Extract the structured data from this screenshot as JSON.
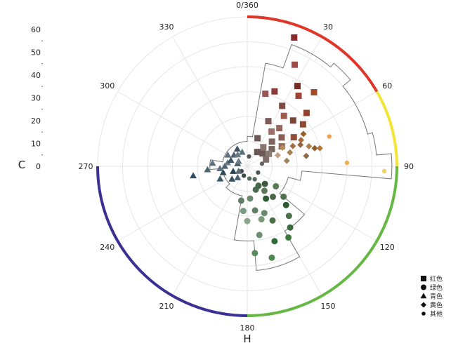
{
  "chart_data": {
    "type": "scatter",
    "coordinate_system": "polar",
    "xlabel": "H",
    "ylabel": "C",
    "angle_ticks": [
      "0/360",
      "30",
      "60",
      "90",
      "120",
      "150",
      "180",
      "210",
      "240",
      "270",
      "300",
      "330"
    ],
    "radial_ticks": [
      "0",
      "10",
      "20",
      "30",
      "40",
      "50",
      "60"
    ],
    "radial_range": [
      0,
      60
    ],
    "angle_range": [
      0,
      360
    ],
    "grid": true,
    "legend_position": "bottom-right",
    "hue_band": [
      {
        "from": 0,
        "to": 60,
        "color": "#e03528"
      },
      {
        "from": 60,
        "to": 90,
        "color": "#f2e537"
      },
      {
        "from": 90,
        "to": 180,
        "color": "#66b845"
      },
      {
        "from": 180,
        "to": 270,
        "color": "#3a3192"
      }
    ],
    "series": [
      {
        "name": "红色",
        "marker": "square",
        "points": [
          [
            20,
            55,
            "#8a2a2a"
          ],
          [
            25,
            45,
            "#a24a45"
          ],
          [
            32,
            38,
            "#7a2e22"
          ],
          [
            36,
            35,
            "#9a4538"
          ],
          [
            42,
            40,
            "#a04a28"
          ],
          [
            48,
            32,
            "#8e3f2e"
          ],
          [
            53,
            28,
            "#93482f"
          ],
          [
            58,
            22,
            "#8f4e35"
          ],
          [
            14,
            30,
            "#9a5555"
          ],
          [
            20,
            32,
            "#8a3c3c"
          ],
          [
            30,
            28,
            "#824a44"
          ],
          [
            36,
            25,
            "#a05a50"
          ],
          [
            45,
            26,
            "#7c4535"
          ],
          [
            40,
            20,
            "#96675e"
          ],
          [
            50,
            18,
            "#8a6054"
          ],
          [
            60,
            16,
            "#8d6758"
          ],
          [
            25,
            20,
            "#7c5c55"
          ],
          [
            35,
            17,
            "#9a7068"
          ],
          [
            45,
            14,
            "#806660"
          ],
          [
            55,
            12,
            "#7a6660"
          ],
          [
            20,
            12,
            "#6e5a58"
          ],
          [
            40,
            10,
            "#8a7470"
          ],
          [
            50,
            8,
            "#6c5854"
          ],
          [
            60,
            10,
            "#8a7a74"
          ],
          [
            70,
            8,
            "#7e6e6a"
          ],
          [
            35,
            7,
            "#6a5654"
          ]
        ]
      },
      {
        "name": "黄色",
        "marker": "diamond",
        "points": [
          [
            60,
            26,
            "#9a6030"
          ],
          [
            64,
            24,
            "#a86c3c"
          ],
          [
            68,
            23,
            "#986438"
          ],
          [
            72,
            26,
            "#b08048"
          ],
          [
            75,
            28,
            "#8c6030"
          ],
          [
            66,
            20,
            "#a57040"
          ],
          [
            62,
            16,
            "#b5895a"
          ],
          [
            72,
            18,
            "#a98050"
          ],
          [
            80,
            24,
            "#8f6a42"
          ],
          [
            70,
            13,
            "#c0a080"
          ],
          [
            82,
            16,
            "#a08460"
          ],
          [
            76,
            30,
            "#b07840"
          ]
        ]
      },
      {
        "name": "其他",
        "marker": "small-circle",
        "points": [
          [
            88,
            40,
            "#f3ad4c"
          ],
          [
            70,
            35,
            "#f0a050"
          ],
          [
            92,
            55,
            "#f0d060"
          ],
          [
            10,
            4,
            "#5e5656"
          ],
          [
            80,
            6,
            "#6a6460"
          ],
          [
            120,
            5,
            "#4a5a52"
          ],
          [
            200,
            4,
            "#3a4a48"
          ],
          [
            230,
            3,
            "#434e50"
          ],
          [
            150,
            6,
            "#4e6a5a"
          ],
          [
            170,
            5,
            "#556a5e"
          ]
        ]
      },
      {
        "name": "绿色",
        "marker": "circle",
        "points": [
          [
            125,
            14,
            "#5a7a5a"
          ],
          [
            140,
            16,
            "#4a6a48"
          ],
          [
            150,
            15,
            "#2e5a35"
          ],
          [
            160,
            20,
            "#6a8a6a"
          ],
          [
            165,
            22,
            "#7a9a7a"
          ],
          [
            155,
            24,
            "#4a7048"
          ],
          [
            170,
            28,
            "#6e9070"
          ],
          [
            160,
            32,
            "#2e6a38"
          ],
          [
            150,
            33,
            "#3a7a3a"
          ],
          [
            165,
            38,
            "#4a8a50"
          ],
          [
            145,
            30,
            "#3a6a3a"
          ],
          [
            175,
            35,
            "#5a8a60"
          ],
          [
            140,
            26,
            "#4a7048"
          ],
          [
            135,
            22,
            "#2a5a30"
          ],
          [
            130,
            19,
            "#4f6f4f"
          ],
          [
            170,
            18,
            "#5e8060"
          ],
          [
            180,
            22,
            "#8aa888"
          ],
          [
            185,
            18,
            "#7a9a80"
          ],
          [
            175,
            13,
            "#6a8a70"
          ],
          [
            160,
            10,
            "#4a6a55"
          ],
          [
            190,
            14,
            "#5e7e68"
          ],
          [
            150,
            9,
            "#436a4a"
          ],
          [
            145,
            12,
            "#5a7a58"
          ],
          [
            135,
            10,
            "#3e5a40"
          ]
        ]
      },
      {
        "name": "青色",
        "marker": "triangle",
        "points": [
          [
            260,
            22,
            "#2e4a60"
          ],
          [
            245,
            12,
            "#3a5a68"
          ],
          [
            255,
            10,
            "#2e4a58"
          ],
          [
            265,
            11,
            "#5a7080"
          ],
          [
            270,
            9,
            "#4a6270"
          ],
          [
            280,
            8,
            "#6a7c86"
          ],
          [
            290,
            7,
            "#3a5464"
          ],
          [
            300,
            9,
            "#5c7280"
          ],
          [
            310,
            7,
            "#4a5e6c"
          ],
          [
            320,
            6,
            "#6a7a84"
          ],
          [
            330,
            8,
            "#3c5260"
          ],
          [
            340,
            6,
            "#58707c"
          ],
          [
            230,
            8,
            "#3a5060"
          ],
          [
            220,
            6,
            "#4a6070"
          ],
          [
            250,
            6,
            "#2a4050"
          ],
          [
            240,
            4,
            "#5a6c78"
          ],
          [
            285,
            4,
            "#4a5e6a"
          ],
          [
            300,
            4,
            "#6a7a86"
          ],
          [
            275,
            14,
            "#5a7280"
          ],
          [
            265,
            16,
            "#4a6472"
          ]
        ]
      }
    ],
    "legend": [
      {
        "label": "红色",
        "marker": "square"
      },
      {
        "label": "绿色",
        "marker": "circle"
      },
      {
        "label": "青色",
        "marker": "triangle"
      },
      {
        "label": "黄色",
        "marker": "diamond"
      },
      {
        "label": "其他",
        "marker": "small-circle"
      }
    ]
  }
}
